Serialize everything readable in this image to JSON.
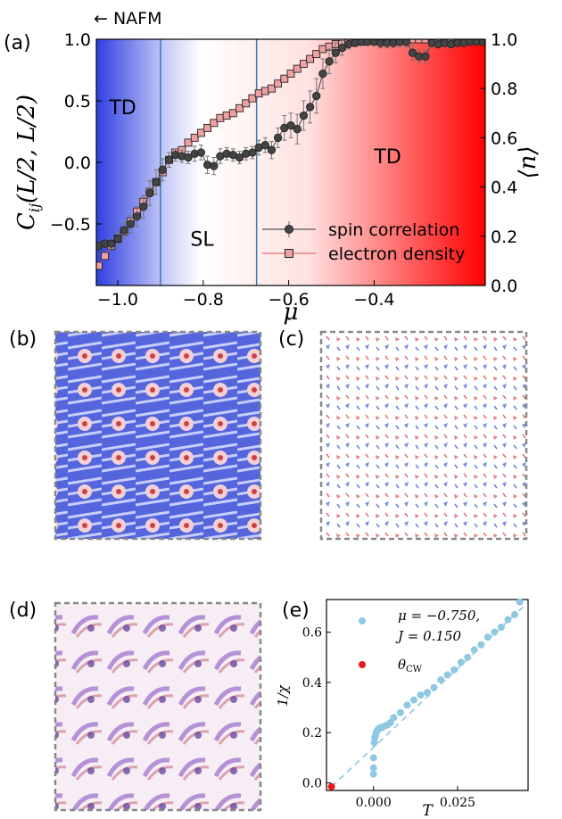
{
  "chart_data": [
    {
      "panel": "(a)",
      "type": "line",
      "xlabel": "μ",
      "ylabel": "C_ij(L/2, L/2)",
      "ylabel2": "⟨n⟩",
      "xlim": [
        -1.05,
        -0.14
      ],
      "ylim": [
        -1.0,
        1.0
      ],
      "ylim2": [
        0.0,
        1.0
      ],
      "xticks": [
        -1.0,
        -0.8,
        -0.6,
        -0.4
      ],
      "xtick_labels": [
        "−1.0",
        "−0.8",
        "−0.6",
        "−0.4"
      ],
      "yticks": [
        -0.5,
        0.0,
        0.5,
        1.0
      ],
      "ytick_labels": [
        "−0.5",
        "0.0",
        "0.5",
        "1.0"
      ],
      "yticks2": [
        0.0,
        0.2,
        0.4,
        0.6,
        0.8,
        1.0
      ],
      "ytick_labels2": [
        "0.0",
        "0.2",
        "0.4",
        "0.6",
        "0.8",
        "1.0"
      ],
      "phase_lines": [
        -0.9,
        -0.675
      ],
      "regions": [
        {
          "label": "TD",
          "x": -1.02,
          "y": 0.45
        },
        {
          "label": "SL",
          "x": -0.83,
          "y": -0.62
        },
        {
          "label": "TD",
          "x": -0.4,
          "y": 0.05
        }
      ],
      "top_annotation": "← NAFM",
      "legend": "bottom-right",
      "series": [
        {
          "name": "spin correlation",
          "axis": "left",
          "color": "#555555",
          "x": [
            -1.045,
            -1.03,
            -1.015,
            -1.0,
            -0.985,
            -0.97,
            -0.955,
            -0.94,
            -0.925,
            -0.91,
            -0.895,
            -0.88,
            -0.865,
            -0.85,
            -0.835,
            -0.82,
            -0.805,
            -0.79,
            -0.775,
            -0.76,
            -0.745,
            -0.73,
            -0.715,
            -0.7,
            -0.685,
            -0.67,
            -0.655,
            -0.64,
            -0.625,
            -0.61,
            -0.595,
            -0.58,
            -0.565,
            -0.55,
            -0.535,
            -0.52,
            -0.505,
            -0.49,
            -0.475,
            -0.46,
            -0.445,
            -0.43,
            -0.415,
            -0.4,
            -0.385,
            -0.37,
            -0.355,
            -0.34,
            -0.325,
            -0.31,
            -0.295,
            -0.28,
            -0.265,
            -0.25,
            -0.235,
            -0.22,
            -0.205,
            -0.19,
            -0.175,
            -0.16,
            -0.145
          ],
          "values": [
            -0.68,
            -0.66,
            -0.66,
            -0.62,
            -0.55,
            -0.5,
            -0.44,
            -0.36,
            -0.25,
            -0.16,
            -0.06,
            0.02,
            0.06,
            0.05,
            0.04,
            0.07,
            0.08,
            -0.02,
            -0.03,
            0.05,
            0.07,
            0.06,
            0.04,
            0.07,
            0.08,
            0.12,
            0.14,
            0.1,
            0.2,
            0.28,
            0.3,
            0.27,
            0.38,
            0.45,
            0.54,
            0.72,
            0.82,
            0.89,
            0.93,
            0.96,
            0.97,
            0.98,
            0.98,
            0.98,
            0.97,
            0.97,
            0.97,
            0.98,
            0.98,
            0.89,
            0.86,
            0.86,
            0.97,
            0.96,
            0.97,
            0.96,
            0.97,
            0.97,
            0.98,
            0.98,
            0.98
          ],
          "errors": [
            0.03,
            0.03,
            0.04,
            0.05,
            0.06,
            0.07,
            0.08,
            0.09,
            0.1,
            0.1,
            0.09,
            0.06,
            0.05,
            0.05,
            0.05,
            0.06,
            0.06,
            0.07,
            0.07,
            0.06,
            0.05,
            0.05,
            0.05,
            0.05,
            0.05,
            0.06,
            0.06,
            0.07,
            0.08,
            0.1,
            0.1,
            0.12,
            0.12,
            0.13,
            0.14,
            0.12,
            0.1,
            0.08,
            0.06,
            0.04,
            0.03,
            0.03,
            0.03,
            0.03,
            0.04,
            0.04,
            0.04,
            0.04,
            0.04,
            0.06,
            0.05,
            0.05,
            0.03,
            0.03,
            0.03,
            0.03,
            0.02,
            0.02,
            0.02,
            0.02,
            0.02
          ]
        },
        {
          "name": "electron density",
          "axis": "right",
          "color": "#e05555",
          "x": [
            -1.045,
            -1.03,
            -1.015,
            -1.0,
            -0.985,
            -0.97,
            -0.955,
            -0.94,
            -0.925,
            -0.91,
            -0.895,
            -0.88,
            -0.865,
            -0.85,
            -0.835,
            -0.82,
            -0.805,
            -0.79,
            -0.775,
            -0.76,
            -0.745,
            -0.73,
            -0.715,
            -0.7,
            -0.685,
            -0.67,
            -0.655,
            -0.64,
            -0.625,
            -0.61,
            -0.595,
            -0.58,
            -0.565,
            -0.55,
            -0.535,
            -0.52,
            -0.505,
            -0.49,
            -0.475,
            -0.46,
            -0.445,
            -0.43,
            -0.415,
            -0.4,
            -0.385,
            -0.37,
            -0.355,
            -0.34,
            -0.325,
            -0.31,
            -0.295,
            -0.28,
            -0.265,
            -0.25,
            -0.235,
            -0.22,
            -0.205,
            -0.19,
            -0.175,
            -0.16,
            -0.145
          ],
          "values": [
            0.08,
            0.12,
            0.16,
            0.19,
            0.22,
            0.26,
            0.3,
            0.34,
            0.38,
            0.42,
            0.46,
            0.51,
            0.54,
            0.55,
            0.58,
            0.6,
            0.62,
            0.64,
            0.66,
            0.68,
            0.69,
            0.7,
            0.72,
            0.74,
            0.76,
            0.78,
            0.79,
            0.8,
            0.82,
            0.84,
            0.86,
            0.88,
            0.9,
            0.92,
            0.94,
            0.96,
            0.97,
            0.98,
            0.98,
            0.99,
            0.99,
            0.99,
            1.0,
            1.0,
            1.0,
            1.0,
            1.0,
            1.0,
            1.0,
            1.0,
            1.0,
            1.0,
            1.0,
            1.0,
            1.0,
            1.0,
            1.0,
            1.0,
            1.0,
            1.0,
            1.0
          ]
        }
      ]
    },
    {
      "panel": "(e)",
      "type": "scatter",
      "xlabel": "T",
      "ylabel": "1/χ",
      "xlim": [
        -0.014,
        0.046
      ],
      "ylim": [
        -0.03,
        0.73
      ],
      "xticks": [
        0.0,
        0.025
      ],
      "xtick_labels": [
        "0.000",
        "0.025"
      ],
      "yticks": [
        0.0,
        0.2,
        0.4,
        0.6
      ],
      "ytick_labels": [
        "0.0",
        "0.2",
        "0.4",
        "0.6"
      ],
      "legend": "top-left",
      "series": [
        {
          "name": "μ = −0.750,",
          "name_line2": "J = 0.150",
          "color": "#8ec8e3",
          "x": [
            0.0,
            0.0,
            0.0,
            0.0002,
            0.0004,
            0.0006,
            0.0008,
            0.001,
            0.0012,
            0.0015,
            0.002,
            0.0025,
            0.003,
            0.004,
            0.005,
            0.006,
            0.008,
            0.01,
            0.012,
            0.014,
            0.016,
            0.018,
            0.02,
            0.022,
            0.024,
            0.026,
            0.028,
            0.03,
            0.032,
            0.034,
            0.036,
            0.038,
            0.04,
            0.042,
            0.0435
          ],
          "values": [
            0.035,
            0.06,
            0.1,
            0.16,
            0.18,
            0.19,
            0.2,
            0.205,
            0.21,
            0.215,
            0.22,
            0.22,
            0.225,
            0.23,
            0.24,
            0.26,
            0.28,
            0.31,
            0.33,
            0.35,
            0.36,
            0.38,
            0.41,
            0.43,
            0.45,
            0.48,
            0.5,
            0.53,
            0.55,
            0.58,
            0.6,
            0.62,
            0.65,
            0.67,
            0.72
          ]
        },
        {
          "name": "θ_CW",
          "color": "#e41a1c",
          "x": [
            -0.0125
          ],
          "values": [
            -0.015
          ]
        }
      ],
      "fit_line": {
        "x": [
          -0.0125,
          0.0445
        ],
        "values": [
          -0.015,
          0.7
        ]
      }
    }
  ],
  "panels": {
    "a_label": "(a)",
    "b_label": "(b)",
    "c_label": "(c)",
    "d_label": "(d)",
    "e_label": "(e)"
  },
  "legend_a": {
    "spin": "spin correlation",
    "density": "electron density"
  },
  "legend_e": {
    "line1": "μ = −0.750,",
    "line2": "J = 0.150",
    "cw": "θ"
  },
  "colors": {
    "blue": "#3b4cc0",
    "red": "#ff0000",
    "phase_line": "#3a7ab0",
    "frame": "#888888"
  }
}
